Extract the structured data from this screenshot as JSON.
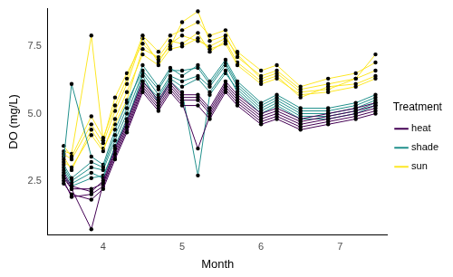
{
  "chart_data": {
    "type": "line",
    "x_label": "Month",
    "y_label": "DO (mg/L)",
    "legend_title": "Treatment",
    "legend": "right",
    "grid": false,
    "marker": "circle",
    "xlim": [
      3.3,
      7.6
    ],
    "xticks": [
      4,
      5,
      6,
      7
    ],
    "ylim": [
      0.5,
      8.9
    ],
    "yticks": [
      2.5,
      {
        "value": 5,
        "label": "5.0"
      },
      7.5
    ],
    "x": [
      3.5,
      3.6,
      3.85,
      4.0,
      4.15,
      4.3,
      4.5,
      4.7,
      4.85,
      5.0,
      5.2,
      5.35,
      5.55,
      5.7,
      6.0,
      6.2,
      6.5,
      6.85,
      7.2,
      7.45
    ],
    "series": [
      {
        "name": "heat",
        "color": "#440154",
        "values": [
          2.8,
          2.3,
          2.1,
          2.5,
          3.7,
          4.7,
          6.2,
          5.5,
          6.2,
          5.7,
          5.7,
          5.2,
          6.2,
          5.7,
          5.0,
          5.2,
          4.8,
          5.0,
          5.2,
          5.4
        ]
      },
      {
        "name": "heat",
        "color": "#440154",
        "values": [
          2.4,
          2.0,
          1.8,
          2.2,
          3.3,
          4.3,
          5.8,
          5.1,
          5.8,
          5.3,
          5.3,
          4.8,
          5.8,
          5.3,
          4.6,
          4.8,
          4.4,
          4.6,
          4.8,
          5.0
        ]
      },
      {
        "name": "heat",
        "color": "#440154",
        "values": [
          2.6,
          2.2,
          0.7,
          2.4,
          3.5,
          4.5,
          6.0,
          5.3,
          6.0,
          5.5,
          5.5,
          5.0,
          6.0,
          5.5,
          4.8,
          5.0,
          4.6,
          4.8,
          5.0,
          5.2
        ]
      },
      {
        "name": "heat",
        "color": "#440154",
        "values": [
          2.5,
          1.9,
          2.0,
          2.3,
          3.4,
          4.4,
          5.9,
          5.2,
          5.9,
          5.4,
          3.7,
          4.9,
          5.9,
          5.4,
          4.7,
          4.9,
          4.5,
          4.7,
          4.9,
          5.1
        ]
      },
      {
        "name": "heat",
        "color": "#440154",
        "values": [
          2.7,
          2.2,
          2.2,
          2.4,
          3.6,
          4.6,
          6.1,
          5.4,
          6.1,
          5.6,
          5.6,
          5.1,
          6.1,
          5.6,
          4.9,
          5.1,
          4.7,
          4.9,
          5.1,
          5.3
        ]
      },
      {
        "name": "shade",
        "color": "#21908C",
        "values": [
          3.1,
          2.6,
          3.2,
          3.0,
          4.2,
          5.2,
          6.8,
          6.0,
          6.7,
          6.4,
          6.8,
          6.2,
          7.0,
          6.2,
          5.4,
          5.7,
          5.2,
          5.2,
          5.4,
          5.7
        ]
      },
      {
        "name": "shade",
        "color": "#21908C",
        "values": [
          2.9,
          2.4,
          2.8,
          2.6,
          3.8,
          4.8,
          6.2,
          5.6,
          6.3,
          6.0,
          6.3,
          5.8,
          6.6,
          5.8,
          5.0,
          5.3,
          4.8,
          4.8,
          5.0,
          5.3
        ]
      },
      {
        "name": "shade",
        "color": "#21908C",
        "values": [
          3.3,
          6.1,
          3.4,
          3.1,
          4.4,
          5.4,
          6.6,
          5.9,
          6.6,
          6.6,
          6.7,
          6.1,
          6.9,
          6.1,
          5.3,
          5.6,
          5.1,
          5.1,
          5.3,
          5.6
        ]
      },
      {
        "name": "shade",
        "color": "#21908C",
        "values": [
          2.7,
          2.3,
          2.6,
          2.7,
          3.7,
          4.7,
          6.4,
          5.4,
          6.2,
          5.8,
          2.7,
          5.7,
          6.5,
          5.9,
          5.1,
          5.4,
          4.9,
          4.9,
          5.1,
          5.4
        ]
      },
      {
        "name": "shade",
        "color": "#21908C",
        "values": [
          3.0,
          2.5,
          3.0,
          2.9,
          4.0,
          5.0,
          6.5,
          5.7,
          6.4,
          6.2,
          6.4,
          6.0,
          6.8,
          6.0,
          5.2,
          5.5,
          5.0,
          5.0,
          5.2,
          5.5
        ]
      },
      {
        "name": "sun",
        "color": "#FDE725",
        "values": [
          3.8,
          3.4,
          4.9,
          4.1,
          5.3,
          6.3,
          7.9,
          7.3,
          7.9,
          8.1,
          8.4,
          7.9,
          8.1,
          7.3,
          6.6,
          6.8,
          6.0,
          6.3,
          6.5,
          6.9
        ]
      },
      {
        "name": "sun",
        "color": "#FDE725",
        "values": [
          3.2,
          3.0,
          4.2,
          3.6,
          4.8,
          5.8,
          7.2,
          6.8,
          7.4,
          7.5,
          7.8,
          7.4,
          7.6,
          6.8,
          6.1,
          6.3,
          5.7,
          5.8,
          6.0,
          6.3
        ]
      },
      {
        "name": "sun",
        "color": "#FDE725",
        "values": [
          3.6,
          3.5,
          7.9,
          4.0,
          5.6,
          6.5,
          7.6,
          7.0,
          7.5,
          8.4,
          8.8,
          7.7,
          7.9,
          7.1,
          6.4,
          6.6,
          5.9,
          6.1,
          6.3,
          7.2
        ]
      },
      {
        "name": "sun",
        "color": "#FDE725",
        "values": [
          3.4,
          2.9,
          4.4,
          3.7,
          4.6,
          5.5,
          7.4,
          7.1,
          7.7,
          7.6,
          8.0,
          7.3,
          7.7,
          6.9,
          6.2,
          6.4,
          5.6,
          6.0,
          6.1,
          6.4
        ]
      },
      {
        "name": "sun",
        "color": "#FDE725",
        "values": [
          3.5,
          3.3,
          4.6,
          3.9,
          5.1,
          6.1,
          7.8,
          6.9,
          7.6,
          7.9,
          7.7,
          7.5,
          7.8,
          7.2,
          6.3,
          6.5,
          5.8,
          5.9,
          6.3,
          6.6
        ]
      }
    ]
  }
}
